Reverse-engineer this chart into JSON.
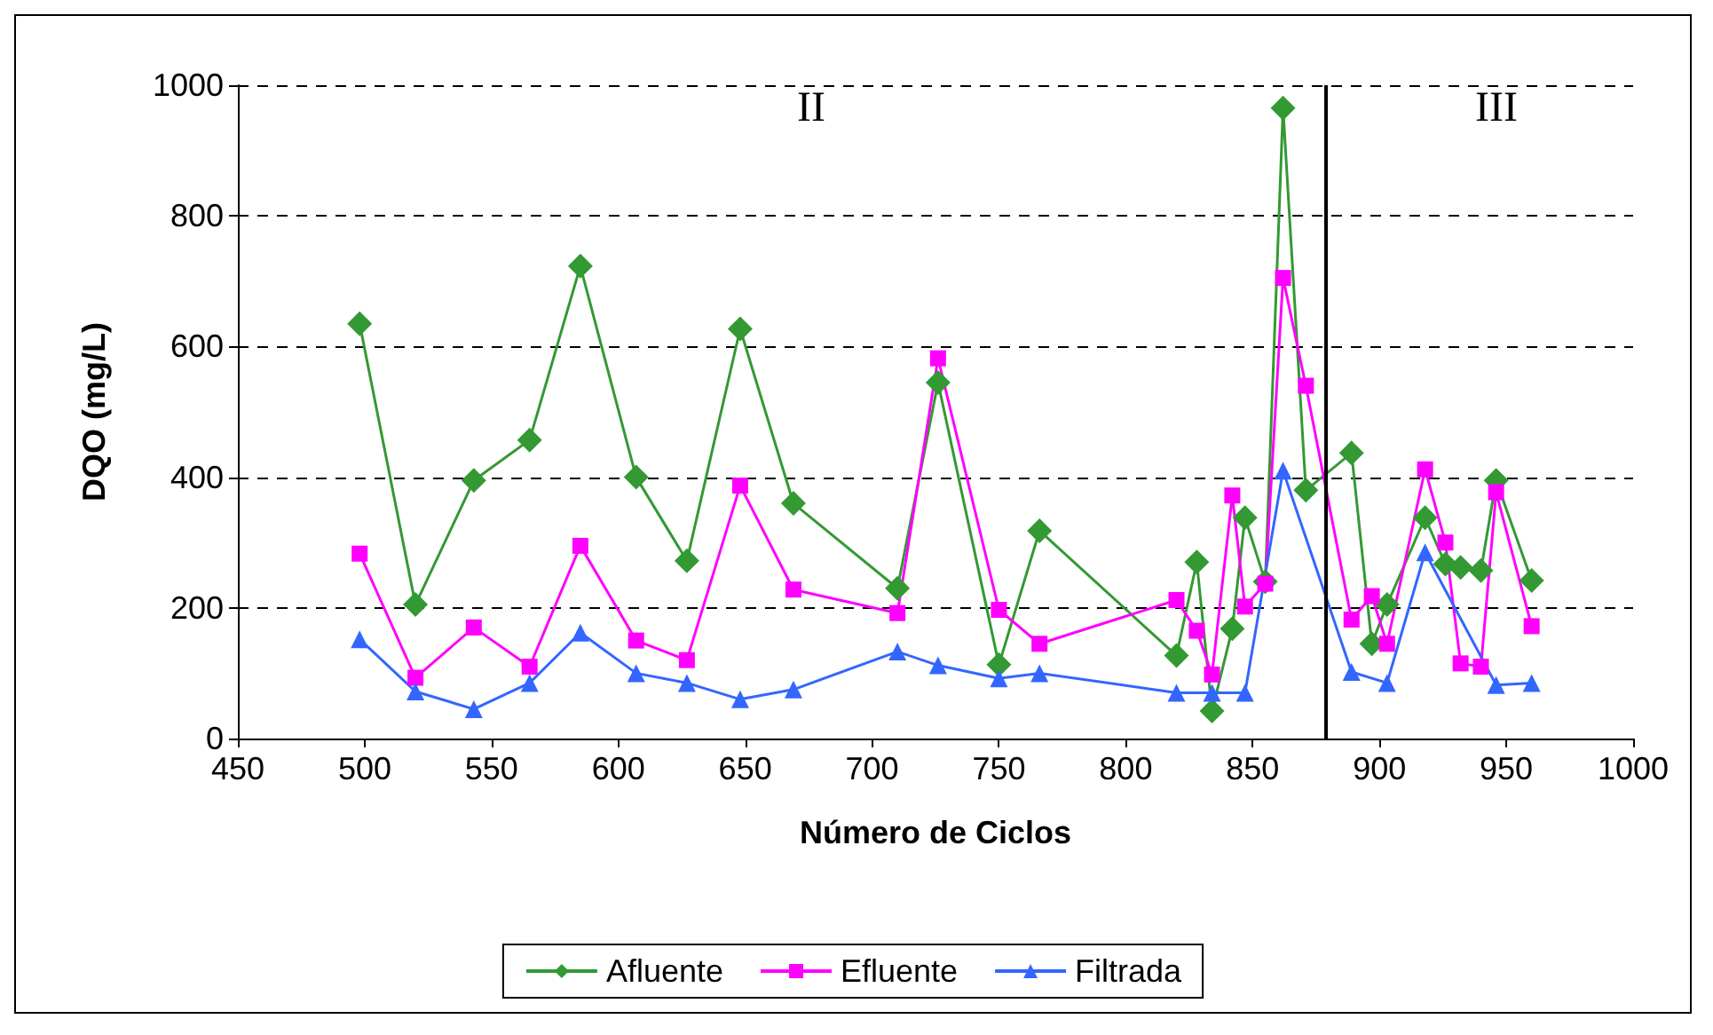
{
  "chart_data": {
    "type": "line",
    "xlabel": "Número de Ciclos",
    "ylabel": "DQO (mg/L)",
    "xlim": [
      450,
      1000
    ],
    "xticks": [
      450,
      500,
      550,
      600,
      650,
      700,
      750,
      800,
      850,
      900,
      950,
      1000
    ],
    "ylim": [
      0,
      1000
    ],
    "yticks": [
      0,
      200,
      400,
      600,
      800,
      1000
    ],
    "grid": "y",
    "legend": "bottom",
    "line_style": "solid",
    "series": [
      {
        "name": "Afluente",
        "color": "#339933",
        "marker": "diamond",
        "x": [
          498,
          520,
          543,
          565,
          585,
          607,
          627,
          648,
          669,
          710,
          726,
          750,
          766,
          820,
          828,
          834,
          842,
          847,
          855,
          862,
          871,
          889,
          897,
          903,
          918,
          926,
          932,
          940,
          946,
          960
        ],
        "values": [
          635,
          205,
          395,
          457,
          723,
          400,
          272,
          627,
          360,
          230,
          545,
          113,
          318,
          127,
          270,
          42,
          168,
          338,
          240,
          965,
          380,
          437,
          145,
          205,
          338,
          267,
          262,
          257,
          395,
          242
        ]
      },
      {
        "name": "Efluente",
        "color": "#ff00ff",
        "marker": "square",
        "x": [
          498,
          520,
          543,
          565,
          585,
          607,
          627,
          648,
          669,
          710,
          726,
          750,
          766,
          820,
          828,
          834,
          842,
          847,
          855,
          862,
          871,
          889,
          897,
          903,
          918,
          926,
          932,
          940,
          946,
          960
        ],
        "values": [
          283,
          93,
          170,
          110,
          295,
          150,
          120,
          387,
          228,
          192,
          582,
          197,
          145,
          212,
          165,
          98,
          372,
          202,
          237,
          705,
          540,
          182,
          218,
          145,
          412,
          300,
          115,
          110,
          377,
          172
        ]
      },
      {
        "name": "Filtrada",
        "color": "#3366ff",
        "marker": "triangle",
        "x": [
          498,
          520,
          543,
          565,
          585,
          607,
          627,
          648,
          669,
          710,
          726,
          750,
          766,
          820,
          834,
          847,
          862,
          889,
          903,
          918,
          946,
          960
        ],
        "values": [
          152,
          72,
          45,
          85,
          162,
          100,
          85,
          60,
          75,
          133,
          112,
          92,
          100,
          70,
          70,
          70,
          410,
          102,
          85,
          285,
          82,
          85
        ]
      }
    ],
    "ref_lines": [
      {
        "axis": "x",
        "value": 879,
        "color": "#000000",
        "line_style": "solid"
      }
    ],
    "annotations": [
      "II",
      "III"
    ]
  }
}
